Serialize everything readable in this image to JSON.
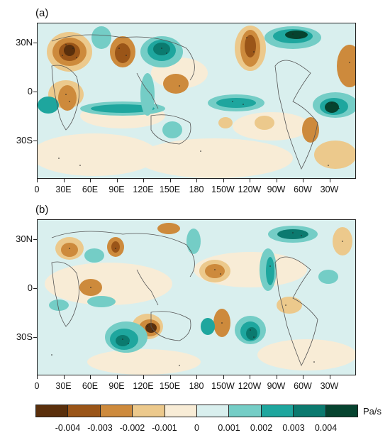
{
  "panels": [
    {
      "label": "(a)"
    },
    {
      "label": "(b)"
    }
  ],
  "lat_labels": [
    "30N",
    "0",
    "30S"
  ],
  "lon_labels": [
    "0",
    "30E",
    "60E",
    "90E",
    "120E",
    "150E",
    "180",
    "150W",
    "120W",
    "90W",
    "60W",
    "30W"
  ],
  "colorbar": {
    "unit": "Pa/s",
    "tick_labels": [
      "-0.004",
      "-0.003",
      "-0.002",
      "-0.001",
      "0",
      "0.001",
      "0.002",
      "0.003",
      "0.004"
    ],
    "colors": [
      "#5a2f0c",
      "#9a5518",
      "#cd8a3c",
      "#ecc98c",
      "#f8ecd6",
      "#d9efee",
      "#74cdc6",
      "#1ea69e",
      "#0b7a6f",
      "#06432f"
    ]
  }
}
